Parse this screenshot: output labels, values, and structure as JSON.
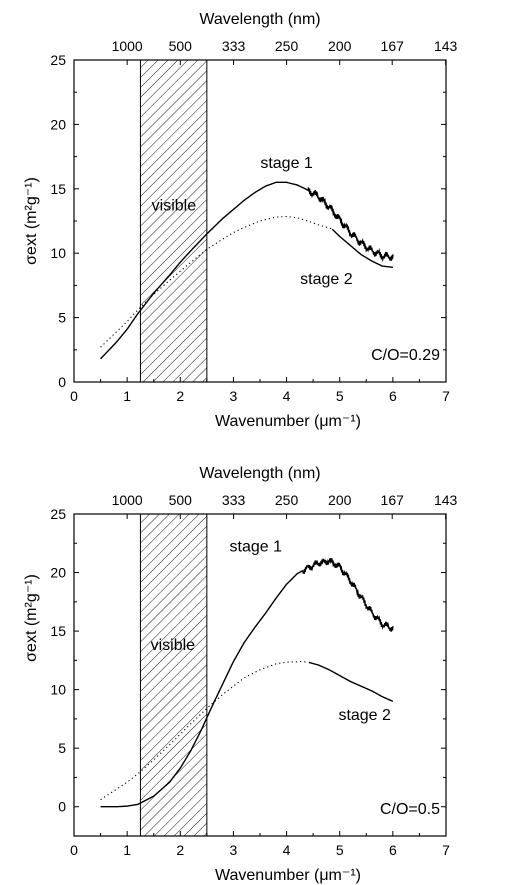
{
  "chart_data": [
    {
      "type": "line",
      "xlabel": "Wavenumber (μm⁻¹)",
      "ylabel": "σext (m²g⁻¹)",
      "top_axis_label": "Wavelength (nm)",
      "top_ticks": [
        "1000",
        "500",
        "333",
        "250",
        "200",
        "167",
        "143"
      ],
      "xlim": [
        0,
        7
      ],
      "ylim": [
        0,
        25
      ],
      "xticks": [
        0,
        1,
        2,
        3,
        4,
        5,
        6,
        7
      ],
      "yticks": [
        0,
        5,
        10,
        15,
        20,
        25
      ],
      "shaded_region": {
        "label": "visible",
        "x_range": [
          1.25,
          2.5
        ]
      },
      "annotation": "C/O=0.29",
      "series": [
        {
          "name": "stage 1",
          "style": "solid",
          "x": [
            0.5,
            0.8,
            1.0,
            1.2,
            1.5,
            1.8,
            2.0,
            2.2,
            2.5,
            2.8,
            3.0,
            3.2,
            3.4,
            3.6,
            3.8,
            4.0,
            4.2,
            4.4,
            4.6,
            4.8,
            5.0,
            5.2,
            5.4,
            5.6,
            5.8,
            6.0
          ],
          "values": [
            1.8,
            3.1,
            4.1,
            5.3,
            6.9,
            8.3,
            9.3,
            10.2,
            11.5,
            12.7,
            13.4,
            14.1,
            14.7,
            15.2,
            15.5,
            15.5,
            15.3,
            14.9,
            14.4,
            13.6,
            12.6,
            11.6,
            10.8,
            10.2,
            9.8,
            9.7
          ],
          "noisy_from_x": 4.4
        },
        {
          "name": "stage 2",
          "style": "dotted",
          "x": [
            0.5,
            0.8,
            1.0,
            1.2,
            1.5,
            1.8,
            2.0,
            2.2,
            2.5,
            2.8,
            3.0,
            3.2,
            3.5,
            3.8,
            4.0,
            4.2,
            4.4,
            4.6,
            4.85,
            5.0,
            5.2,
            5.4,
            5.6,
            5.8,
            6.0
          ],
          "values": [
            2.7,
            3.9,
            4.7,
            5.6,
            6.8,
            7.9,
            8.6,
            9.3,
            10.3,
            11.1,
            11.6,
            12.0,
            12.5,
            12.8,
            12.85,
            12.75,
            12.5,
            12.2,
            11.9,
            11.3,
            10.6,
            9.9,
            9.4,
            9.0,
            8.9
          ],
          "solid_from_x": 4.85
        }
      ],
      "labels": [
        {
          "text": "stage 1",
          "x": 4.0,
          "y": 16.6
        },
        {
          "text": "stage 2",
          "x": 4.75,
          "y": 7.6
        },
        {
          "text": "visible",
          "x": 1.88,
          "y": 13.3
        }
      ]
    },
    {
      "type": "line",
      "xlabel": "Wavenumber (μm⁻¹)",
      "ylabel": "σext (m²g⁻¹)",
      "top_axis_label": "Wavelength (nm)",
      "top_ticks": [
        "1000",
        "500",
        "333",
        "250",
        "200",
        "167",
        "143"
      ],
      "xlim": [
        0,
        7
      ],
      "ylim": [
        -2.5,
        25
      ],
      "xticks": [
        0,
        1,
        2,
        3,
        4,
        5,
        6,
        7
      ],
      "yticks": [
        0,
        5,
        10,
        15,
        20,
        25
      ],
      "shaded_region": {
        "label": "visible",
        "x_range": [
          1.25,
          2.5
        ]
      },
      "annotation": "C/O=0.5",
      "series": [
        {
          "name": "stage 1",
          "style": "solid",
          "x": [
            0.5,
            0.8,
            1.0,
            1.2,
            1.5,
            1.8,
            2.0,
            2.2,
            2.4,
            2.6,
            2.8,
            3.0,
            3.2,
            3.4,
            3.6,
            3.8,
            4.0,
            4.2,
            4.4,
            4.6,
            4.8,
            5.0,
            5.2,
            5.4,
            5.6,
            5.8,
            6.0
          ],
          "values": [
            0.0,
            0.0,
            0.05,
            0.2,
            0.9,
            2.1,
            3.3,
            4.8,
            6.6,
            8.6,
            10.5,
            12.4,
            14.0,
            15.3,
            16.5,
            17.8,
            19.0,
            19.9,
            20.4,
            20.8,
            21.0,
            20.5,
            19.3,
            17.9,
            16.6,
            15.6,
            15.2
          ],
          "noisy_from_x": 4.3
        },
        {
          "name": "stage 2",
          "style": "dotted",
          "x": [
            0.5,
            0.8,
            1.0,
            1.2,
            1.5,
            1.8,
            2.0,
            2.2,
            2.5,
            2.8,
            3.0,
            3.2,
            3.5,
            3.8,
            4.0,
            4.3,
            4.4,
            4.6,
            4.8,
            5.0,
            5.2,
            5.4,
            5.6,
            5.8,
            6.0
          ],
          "values": [
            0.6,
            1.5,
            2.1,
            2.8,
            4.0,
            5.3,
            6.2,
            7.1,
            8.4,
            9.6,
            10.3,
            11.0,
            11.7,
            12.2,
            12.35,
            12.4,
            12.35,
            12.1,
            11.7,
            11.2,
            10.7,
            10.3,
            9.9,
            9.4,
            9.0
          ],
          "solid_from_x": 4.4
        }
      ],
      "labels": [
        {
          "text": "stage 1",
          "x": 3.42,
          "y": 21.8
        },
        {
          "text": "stage 2",
          "x": 5.47,
          "y": 7.4
        },
        {
          "text": "visible",
          "x": 1.86,
          "y": 13.4
        }
      ]
    }
  ]
}
